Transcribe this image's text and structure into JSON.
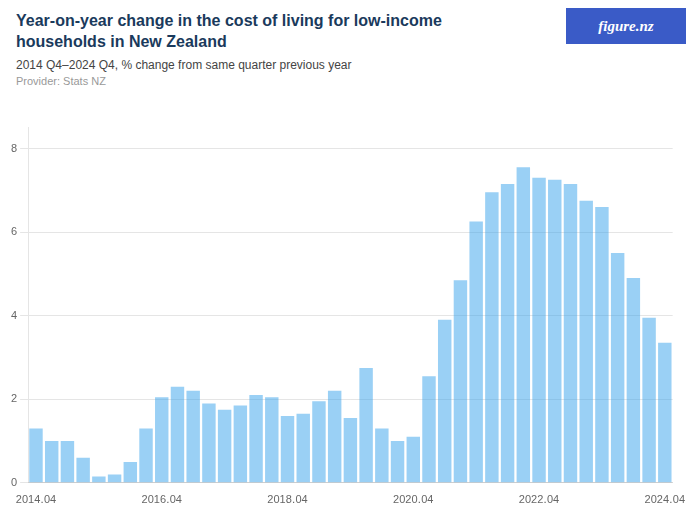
{
  "chart_data": {
    "type": "bar",
    "title": [
      "Year-on-year change in the cost of living for low-income",
      "households in New Zealand"
    ],
    "subtitle": "2014 Q4–2024 Q4, % change from same quarter previous year",
    "annotations": [
      "Provider: Stats NZ",
      "figure.nz"
    ],
    "categories": [
      "2014․04",
      null,
      null,
      null,
      null,
      null,
      null,
      null,
      "2016․04",
      null,
      null,
      null,
      null,
      null,
      null,
      null,
      "2018․04",
      null,
      null,
      null,
      null,
      null,
      null,
      null,
      "2020․04",
      null,
      null,
      null,
      null,
      null,
      null,
      null,
      "2022․04",
      null,
      null,
      null,
      null,
      null,
      null,
      null,
      "2024․04"
    ],
    "values": [
      1.3,
      1.0,
      1.0,
      0.6,
      0.15,
      0.2,
      0.5,
      1.3,
      2.05,
      2.3,
      2.2,
      1.9,
      1.75,
      1.85,
      2.1,
      2.05,
      1.6,
      1.65,
      1.95,
      2.2,
      1.55,
      2.75,
      1.3,
      1.0,
      1.1,
      2.55,
      3.9,
      4.85,
      6.25,
      6.95,
      7.15,
      7.55,
      7.3,
      7.25,
      7.15,
      6.75,
      6.6,
      5.5,
      4.9,
      3.95,
      3.35
    ],
    "ylim": [
      0,
      8.5
    ],
    "yticks": [
      0,
      2,
      4,
      6,
      8
    ],
    "grid": true
  }
}
